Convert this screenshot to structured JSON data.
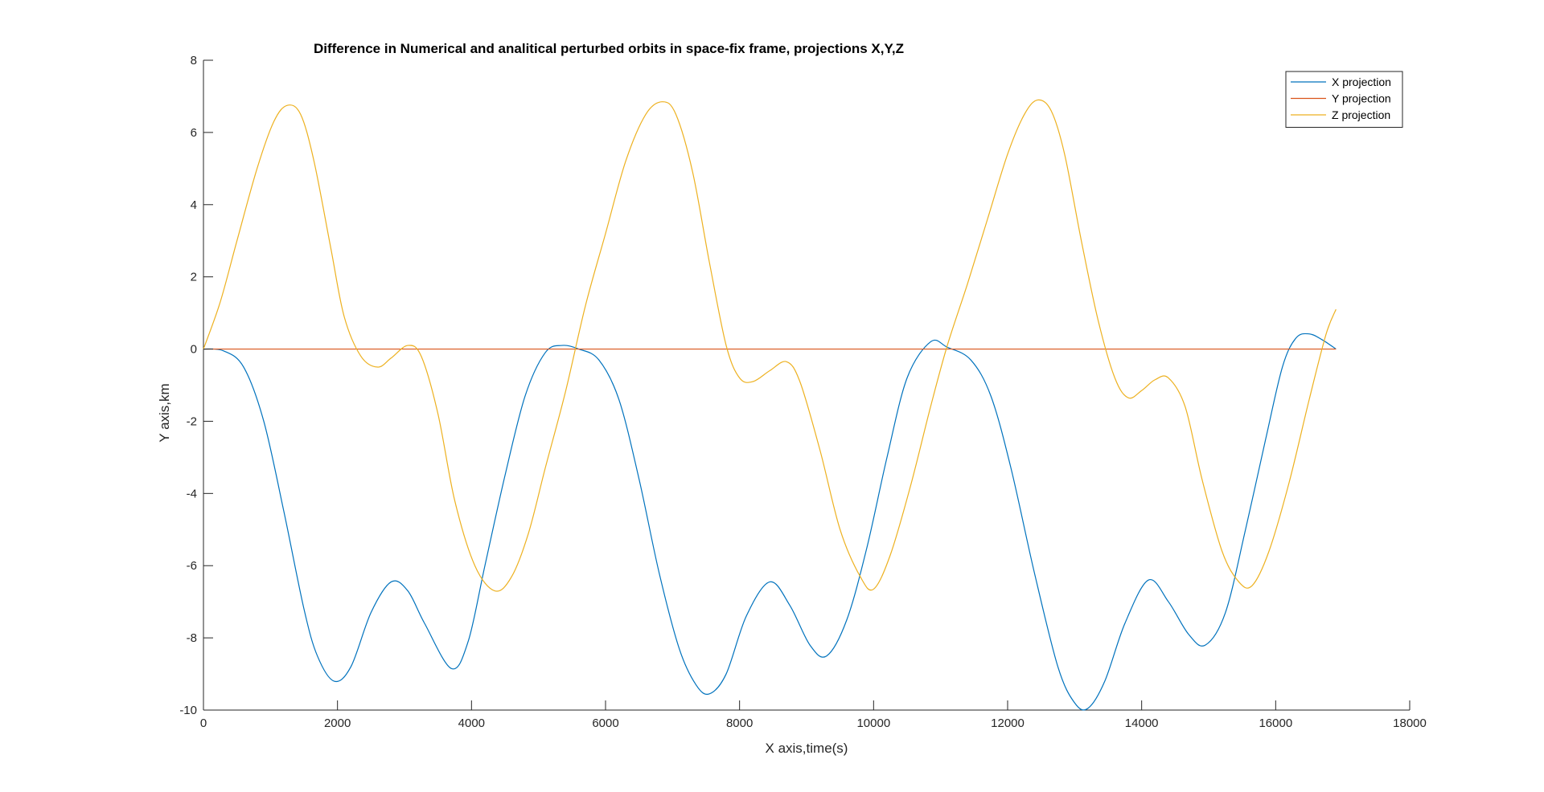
{
  "chart_data": {
    "type": "line",
    "title": "Difference in Numerical and analitical perturbed orbits in space-fix frame, projections X,Y,Z",
    "xlabel": "X axis,time(s)",
    "ylabel": "Y axis,km",
    "xlim": [
      0,
      18000
    ],
    "ylim": [
      -10,
      8
    ],
    "xticks": [
      0,
      2000,
      4000,
      6000,
      8000,
      10000,
      12000,
      14000,
      16000,
      18000
    ],
    "yticks": [
      -10,
      -8,
      -6,
      -4,
      -2,
      0,
      2,
      4,
      6,
      8
    ],
    "grid": false,
    "legend_position": "top-right",
    "series": [
      {
        "name": "X projection",
        "color": "#0072bd",
        "points": [
          [
            0,
            0
          ],
          [
            300,
            -0.05
          ],
          [
            600,
            -0.5
          ],
          [
            900,
            -2.0
          ],
          [
            1200,
            -4.5
          ],
          [
            1500,
            -7.2
          ],
          [
            1700,
            -8.5
          ],
          [
            1950,
            -9.2
          ],
          [
            2200,
            -8.8
          ],
          [
            2500,
            -7.3
          ],
          [
            2800,
            -6.45
          ],
          [
            3050,
            -6.7
          ],
          [
            3300,
            -7.6
          ],
          [
            3700,
            -8.85
          ],
          [
            3950,
            -8.1
          ],
          [
            4200,
            -6.0
          ],
          [
            4500,
            -3.5
          ],
          [
            4800,
            -1.3
          ],
          [
            5100,
            -0.1
          ],
          [
            5350,
            0.1
          ],
          [
            5600,
            0.0
          ],
          [
            5900,
            -0.3
          ],
          [
            6200,
            -1.4
          ],
          [
            6500,
            -3.6
          ],
          [
            6800,
            -6.2
          ],
          [
            7100,
            -8.3
          ],
          [
            7350,
            -9.3
          ],
          [
            7550,
            -9.55
          ],
          [
            7800,
            -9.0
          ],
          [
            8100,
            -7.4
          ],
          [
            8450,
            -6.45
          ],
          [
            8750,
            -7.1
          ],
          [
            9050,
            -8.2
          ],
          [
            9300,
            -8.5
          ],
          [
            9600,
            -7.5
          ],
          [
            9900,
            -5.5
          ],
          [
            10200,
            -3.0
          ],
          [
            10500,
            -0.8
          ],
          [
            10850,
            0.2
          ],
          [
            11100,
            0.05
          ],
          [
            11450,
            -0.3
          ],
          [
            11750,
            -1.3
          ],
          [
            12050,
            -3.3
          ],
          [
            12400,
            -6.2
          ],
          [
            12750,
            -8.8
          ],
          [
            13000,
            -9.8
          ],
          [
            13200,
            -9.95
          ],
          [
            13450,
            -9.2
          ],
          [
            13750,
            -7.6
          ],
          [
            14100,
            -6.4
          ],
          [
            14400,
            -7.0
          ],
          [
            14700,
            -7.9
          ],
          [
            14950,
            -8.2
          ],
          [
            15250,
            -7.3
          ],
          [
            15550,
            -5.0
          ],
          [
            15850,
            -2.5
          ],
          [
            16100,
            -0.5
          ],
          [
            16300,
            0.3
          ],
          [
            16500,
            0.42
          ],
          [
            16700,
            0.25
          ],
          [
            16900,
            0.0
          ]
        ]
      },
      {
        "name": "Y projection",
        "color": "#d95319",
        "points": [
          [
            0,
            0
          ],
          [
            16900,
            0
          ]
        ]
      },
      {
        "name": "Z projection",
        "color": "#edb120",
        "points": [
          [
            0,
            0
          ],
          [
            250,
            1.3
          ],
          [
            500,
            3.0
          ],
          [
            800,
            5.0
          ],
          [
            1050,
            6.3
          ],
          [
            1250,
            6.75
          ],
          [
            1450,
            6.5
          ],
          [
            1650,
            5.2
          ],
          [
            1900,
            2.8
          ],
          [
            2100,
            0.9
          ],
          [
            2350,
            -0.2
          ],
          [
            2600,
            -0.5
          ],
          [
            2800,
            -0.25
          ],
          [
            3050,
            0.1
          ],
          [
            3250,
            -0.2
          ],
          [
            3500,
            -1.8
          ],
          [
            3750,
            -4.2
          ],
          [
            4050,
            -6.0
          ],
          [
            4350,
            -6.7
          ],
          [
            4600,
            -6.3
          ],
          [
            4850,
            -5.1
          ],
          [
            5100,
            -3.3
          ],
          [
            5400,
            -1.2
          ],
          [
            5700,
            1.2
          ],
          [
            6000,
            3.2
          ],
          [
            6300,
            5.2
          ],
          [
            6600,
            6.5
          ],
          [
            6850,
            6.85
          ],
          [
            7050,
            6.5
          ],
          [
            7300,
            4.9
          ],
          [
            7550,
            2.4
          ],
          [
            7800,
            0.1
          ],
          [
            8000,
            -0.8
          ],
          [
            8200,
            -0.9
          ],
          [
            8450,
            -0.6
          ],
          [
            8700,
            -0.35
          ],
          [
            8900,
            -0.9
          ],
          [
            9200,
            -2.8
          ],
          [
            9500,
            -5.0
          ],
          [
            9800,
            -6.3
          ],
          [
            10000,
            -6.65
          ],
          [
            10250,
            -5.7
          ],
          [
            10550,
            -3.8
          ],
          [
            10850,
            -1.6
          ],
          [
            11100,
            0.1
          ],
          [
            11400,
            1.8
          ],
          [
            11700,
            3.6
          ],
          [
            12000,
            5.4
          ],
          [
            12250,
            6.5
          ],
          [
            12450,
            6.9
          ],
          [
            12650,
            6.6
          ],
          [
            12850,
            5.4
          ],
          [
            13100,
            3.0
          ],
          [
            13350,
            0.8
          ],
          [
            13600,
            -0.8
          ],
          [
            13800,
            -1.35
          ],
          [
            14000,
            -1.15
          ],
          [
            14200,
            -0.85
          ],
          [
            14400,
            -0.8
          ],
          [
            14650,
            -1.6
          ],
          [
            14900,
            -3.6
          ],
          [
            15200,
            -5.6
          ],
          [
            15450,
            -6.45
          ],
          [
            15650,
            -6.55
          ],
          [
            15900,
            -5.6
          ],
          [
            16200,
            -3.7
          ],
          [
            16500,
            -1.4
          ],
          [
            16750,
            0.4
          ],
          [
            16900,
            1.1
          ]
        ]
      }
    ]
  }
}
